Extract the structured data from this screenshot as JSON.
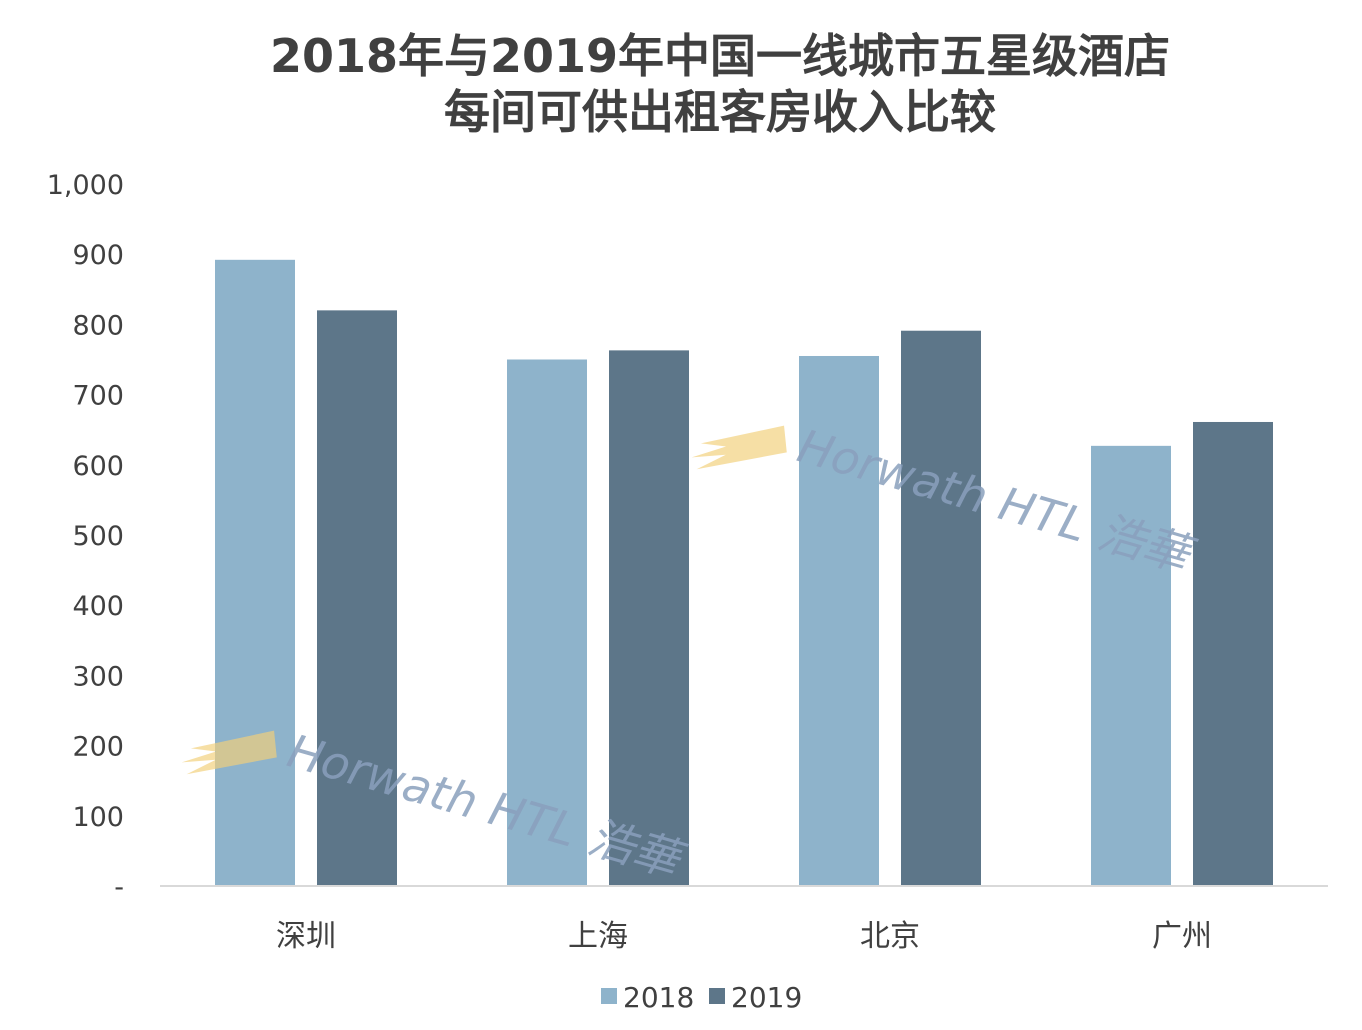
{
  "chart_data": {
    "type": "bar",
    "title_lines": [
      "2018年与2019年中国一线城市五星级酒店",
      "每间可供出租客房收入比较"
    ],
    "categories": [
      "深圳",
      "上海",
      "北京",
      "广州"
    ],
    "series": [
      {
        "name": "2018",
        "values": [
          892,
          750,
          755,
          627
        ]
      },
      {
        "name": "2019",
        "values": [
          820,
          763,
          791,
          661
        ]
      }
    ],
    "ylim": [
      0,
      1000
    ],
    "yticks": [
      {
        "value": 0,
        "label": "-"
      },
      {
        "value": 100,
        "label": "100"
      },
      {
        "value": 200,
        "label": "200"
      },
      {
        "value": 300,
        "label": "300"
      },
      {
        "value": 400,
        "label": "400"
      },
      {
        "value": 500,
        "label": "500"
      },
      {
        "value": 600,
        "label": "600"
      },
      {
        "value": 700,
        "label": "700"
      },
      {
        "value": 800,
        "label": "800"
      },
      {
        "value": 900,
        "label": "900"
      },
      {
        "value": 1000,
        "label": "1,000"
      }
    ],
    "xlabel": "",
    "ylabel": "",
    "grid": false,
    "legend": "bottom-center"
  },
  "colors": {
    "series_2018": "#8eb3cb",
    "series_2019": "#5d7689",
    "axis": "#d9d9d9",
    "text": "#404040",
    "watermark_text": "#8aa0bd",
    "watermark_logo": "#f3d07a"
  },
  "watermark": {
    "text": "Horwath HTL 浩華"
  }
}
